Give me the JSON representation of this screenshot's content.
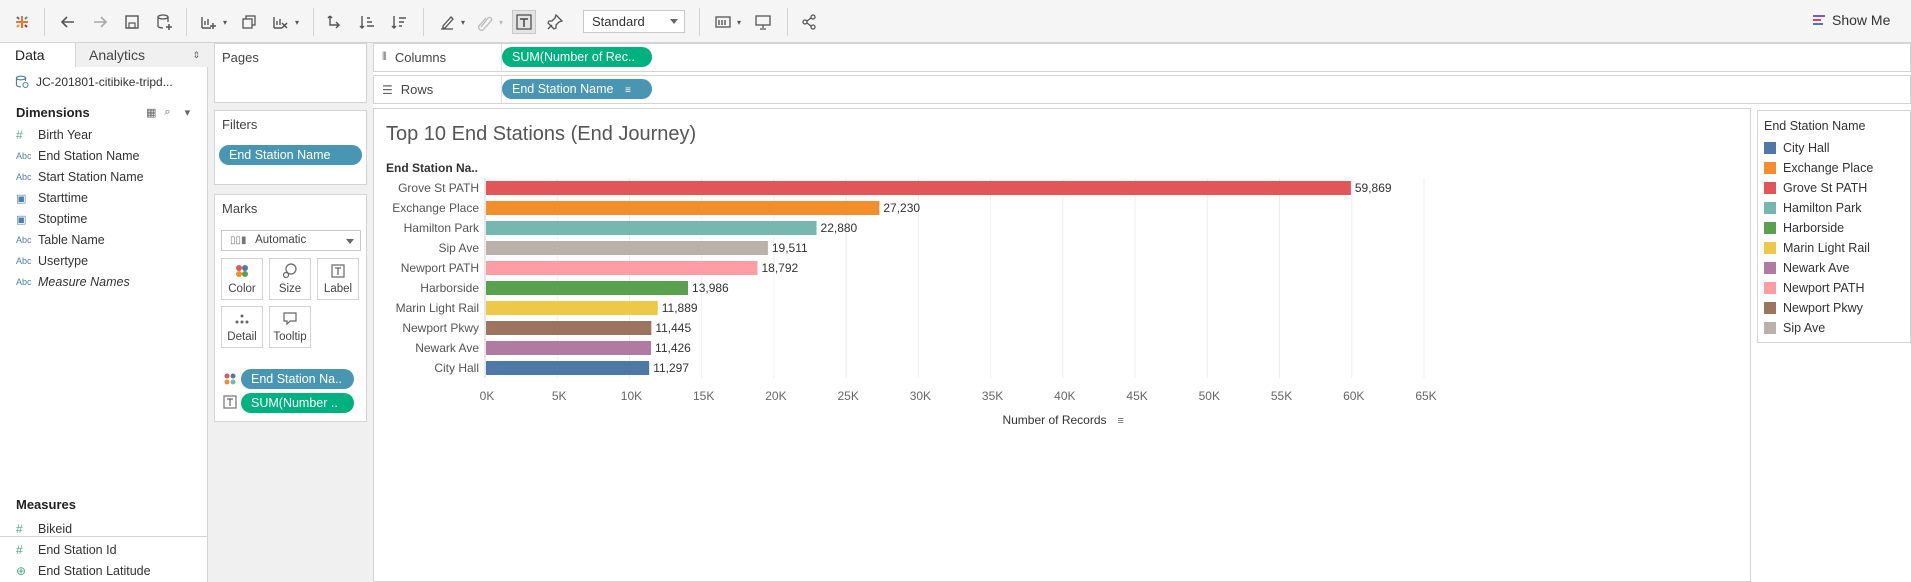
{
  "toolbar": {
    "view_mode": "Standard",
    "show_me": "Show Me"
  },
  "datapane": {
    "tabs": {
      "data": "Data",
      "analytics": "Analytics"
    },
    "datasource": "JC-201801-citibike-tripd...",
    "dimensions_title": "Dimensions",
    "dimensions": [
      {
        "type": "#",
        "kind": "num",
        "label": "Birth Year"
      },
      {
        "type": "Abc",
        "kind": "str",
        "label": "End Station Name"
      },
      {
        "type": "Abc",
        "kind": "str",
        "label": "Start Station Name"
      },
      {
        "type": "cal",
        "kind": "date",
        "label": "Starttime"
      },
      {
        "type": "cal",
        "kind": "date",
        "label": "Stoptime"
      },
      {
        "type": "Abc",
        "kind": "str",
        "label": "Table Name"
      },
      {
        "type": "Abc",
        "kind": "str",
        "label": "Usertype"
      },
      {
        "type": "Abc",
        "kind": "str",
        "label": "Measure Names"
      }
    ],
    "measures_title": "Measures",
    "measures": [
      {
        "type": "#",
        "kind": "num",
        "label": "Bikeid"
      },
      {
        "type": "#",
        "kind": "num",
        "label": "End Station Id"
      },
      {
        "type": "geo",
        "kind": "geo",
        "label": "End Station Latitude"
      }
    ]
  },
  "shelves": {
    "pages_title": "Pages",
    "filters_title": "Filters",
    "filter_pill": "End Station Name",
    "marks_title": "Marks",
    "mark_type": "Automatic",
    "mark_buttons": {
      "color": "Color",
      "size": "Size",
      "label": "Label",
      "detail": "Detail",
      "tooltip": "Tooltip"
    },
    "marks_pills": {
      "color_pill": "End Station Na..",
      "label_pill": "SUM(Number .."
    },
    "columns_label": "Columns",
    "columns_pill": "SUM(Number of Rec..",
    "rows_label": "Rows",
    "rows_pill": "End Station Name"
  },
  "viz": {
    "title": "Top 10 End Stations (End Journey)",
    "row_header": "End Station Na..",
    "axis_label": "Number of Records"
  },
  "chart_data": {
    "type": "bar",
    "orientation": "horizontal",
    "title": "Top 10 End Stations (End Journey)",
    "xlabel": "Number of Records",
    "ylabel": "End Station Na..",
    "xlim": [
      0,
      65000
    ],
    "xticks": [
      "0K",
      "5K",
      "10K",
      "15K",
      "20K",
      "25K",
      "30K",
      "35K",
      "40K",
      "45K",
      "50K",
      "55K",
      "60K",
      "65K"
    ],
    "grid": true,
    "categories": [
      "Grove St PATH",
      "Exchange Place",
      "Hamilton Park",
      "Sip Ave",
      "Newport PATH",
      "Harborside",
      "Marin Light Rail",
      "Newport Pkwy",
      "Newark Ave",
      "City Hall"
    ],
    "values": [
      59869,
      27230,
      22880,
      19511,
      18792,
      13986,
      11889,
      11445,
      11426,
      11297
    ],
    "value_labels": [
      "59,869",
      "27,230",
      "22,880",
      "19,511",
      "18,792",
      "13,986",
      "11,889",
      "11,445",
      "11,426",
      "11,297"
    ],
    "colors": [
      "#e15759",
      "#f28e2b",
      "#76b7b2",
      "#bab0ac",
      "#ff9da7",
      "#59a14f",
      "#edc948",
      "#9c755f",
      "#b07aa1",
      "#4e79a7"
    ]
  },
  "legend": {
    "title": "End Station Name",
    "items": [
      {
        "label": "City Hall",
        "color": "#4e79a7"
      },
      {
        "label": "Exchange Place",
        "color": "#f28e2b"
      },
      {
        "label": "Grove St PATH",
        "color": "#e15759"
      },
      {
        "label": "Hamilton Park",
        "color": "#76b7b2"
      },
      {
        "label": "Harborside",
        "color": "#59a14f"
      },
      {
        "label": "Marin Light Rail",
        "color": "#edc948"
      },
      {
        "label": "Newark Ave",
        "color": "#b07aa1"
      },
      {
        "label": "Newport PATH",
        "color": "#ff9da7"
      },
      {
        "label": "Newport Pkwy",
        "color": "#9c755f"
      },
      {
        "label": "Sip Ave",
        "color": "#bab0ac"
      }
    ]
  }
}
